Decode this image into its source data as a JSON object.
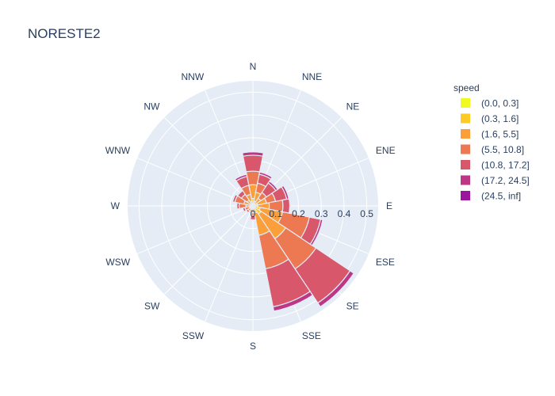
{
  "chart_data": {
    "type": "barpolar",
    "title": "NORESTE2",
    "directions": [
      "N",
      "NNE",
      "NE",
      "ENE",
      "E",
      "ESE",
      "SE",
      "SSE",
      "S",
      "SSW",
      "SW",
      "WSW",
      "W",
      "WNW",
      "NW",
      "NNW"
    ],
    "radial_ticks": [
      "0",
      "0.1",
      "0.2",
      "0.3",
      "0.4",
      "0.5"
    ],
    "radial_range": [
      0,
      0.55
    ],
    "legend_title": "speed",
    "series": [
      {
        "name": "(0.0, 0.3]",
        "color": "#f0f921",
        "values": [
          0.003,
          0.002,
          0.001,
          0.001,
          0.002,
          0.003,
          0.003,
          0.002,
          0.001,
          0.001,
          0.001,
          0.001,
          0.001,
          0.001,
          0.001,
          0.002
        ]
      },
      {
        "name": "(0.3, 1.6]",
        "color": "#fdca26",
        "values": [
          0.03,
          0.02,
          0.01,
          0.02,
          0.02,
          0.03,
          0.04,
          0.03,
          0.01,
          0.005,
          0.005,
          0.005,
          0.01,
          0.01,
          0.01,
          0.02
        ]
      },
      {
        "name": "(1.6, 5.5]",
        "color": "#fb9f3a",
        "values": [
          0.06,
          0.04,
          0.03,
          0.04,
          0.05,
          0.1,
          0.13,
          0.1,
          0.02,
          0.01,
          0.01,
          0.01,
          0.02,
          0.03,
          0.02,
          0.03
        ]
      },
      {
        "name": "(5.5, 10.8]",
        "color": "#ed7953",
        "values": [
          0.06,
          0.04,
          0.03,
          0.04,
          0.06,
          0.12,
          0.16,
          0.15,
          0.01,
          0.01,
          0.01,
          0.02,
          0.03,
          0.04,
          0.03,
          0.04
        ]
      },
      {
        "name": "(10.8, 17.2]",
        "color": "#d8576b",
        "values": [
          0.07,
          0.04,
          0.05,
          0.05,
          0.03,
          0.05,
          0.18,
          0.17,
          0.02,
          0.005,
          0.01,
          0.01,
          0.01,
          0.01,
          0.02,
          0.04
        ]
      },
      {
        "name": "(17.2, 24.5]",
        "color": "#bd3786",
        "values": [
          0.015,
          0.01,
          0.01,
          0.01,
          0.003,
          0.01,
          0.02,
          0.02,
          0.003,
          0.001,
          0.001,
          0.002,
          0.002,
          0.003,
          0.003,
          0.01
        ]
      },
      {
        "name": "(24.5, inf]",
        "color": "#9c179e",
        "values": [
          0.001,
          0.001,
          0.001,
          0.001,
          0.001,
          0.001,
          0.001,
          0.001,
          0.001,
          0.001,
          0.001,
          0.001,
          0.001,
          0.001,
          0.001,
          0.001
        ]
      }
    ]
  }
}
